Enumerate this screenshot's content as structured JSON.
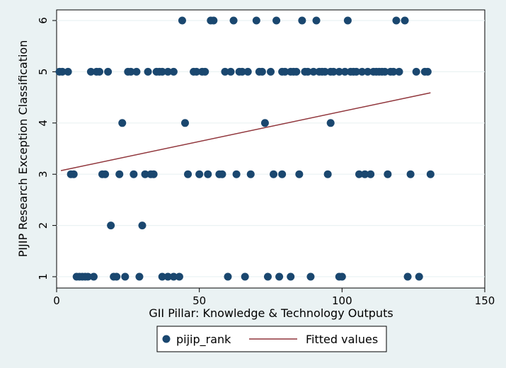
{
  "chart_data": {
    "type": "scatter",
    "xlabel": "GII Pillar: Knowledge & Technology Outputs",
    "ylabel": "PIJIP Research Exception Classification",
    "xlim": [
      0,
      150
    ],
    "ylim": [
      1,
      6
    ],
    "xticks": [
      0,
      50,
      100,
      150
    ],
    "yticks": [
      1,
      2,
      3,
      4,
      5,
      6
    ],
    "grid": "horizontal",
    "legend_position": "bottom",
    "colors": {
      "points": "#1a476f",
      "fit": "#90353b"
    },
    "series": [
      {
        "name": "pijip_rank",
        "kind": "scatter",
        "points": [
          [
            44,
            6
          ],
          [
            54,
            6
          ],
          [
            55,
            6
          ],
          [
            62,
            6
          ],
          [
            70,
            6
          ],
          [
            77,
            6
          ],
          [
            86,
            6
          ],
          [
            91,
            6
          ],
          [
            102,
            6
          ],
          [
            119,
            6
          ],
          [
            122,
            6
          ],
          [
            1,
            5
          ],
          [
            2,
            5
          ],
          [
            4,
            5
          ],
          [
            12,
            5
          ],
          [
            14,
            5
          ],
          [
            15,
            5
          ],
          [
            18,
            5
          ],
          [
            25,
            5
          ],
          [
            26,
            5
          ],
          [
            28,
            5
          ],
          [
            32,
            5
          ],
          [
            35,
            5
          ],
          [
            36,
            5
          ],
          [
            37,
            5
          ],
          [
            39,
            5
          ],
          [
            41,
            5
          ],
          [
            48,
            5
          ],
          [
            49,
            5
          ],
          [
            51,
            5
          ],
          [
            52,
            5
          ],
          [
            59,
            5
          ],
          [
            61,
            5
          ],
          [
            64,
            5
          ],
          [
            65,
            5
          ],
          [
            67,
            5
          ],
          [
            71,
            5
          ],
          [
            72,
            5
          ],
          [
            75,
            5
          ],
          [
            79,
            5
          ],
          [
            80,
            5
          ],
          [
            82,
            5
          ],
          [
            83,
            5
          ],
          [
            84,
            5
          ],
          [
            87,
            5
          ],
          [
            88,
            5
          ],
          [
            90,
            5
          ],
          [
            92,
            5
          ],
          [
            93,
            5
          ],
          [
            94,
            5
          ],
          [
            96,
            5
          ],
          [
            97,
            5
          ],
          [
            99,
            5
          ],
          [
            101,
            5
          ],
          [
            103,
            5
          ],
          [
            104,
            5
          ],
          [
            105,
            5
          ],
          [
            107,
            5
          ],
          [
            109,
            5
          ],
          [
            111,
            5
          ],
          [
            112,
            5
          ],
          [
            113,
            5
          ],
          [
            114,
            5
          ],
          [
            115,
            5
          ],
          [
            117,
            5
          ],
          [
            118,
            5
          ],
          [
            120,
            5
          ],
          [
            126,
            5
          ],
          [
            129,
            5
          ],
          [
            130,
            5
          ],
          [
            23,
            4
          ],
          [
            45,
            4
          ],
          [
            73,
            4
          ],
          [
            96,
            4
          ],
          [
            5,
            3
          ],
          [
            6,
            3
          ],
          [
            16,
            3
          ],
          [
            17,
            3
          ],
          [
            22,
            3
          ],
          [
            27,
            3
          ],
          [
            31,
            3
          ],
          [
            33,
            3
          ],
          [
            34,
            3
          ],
          [
            46,
            3
          ],
          [
            50,
            3
          ],
          [
            53,
            3
          ],
          [
            57,
            3
          ],
          [
            58,
            3
          ],
          [
            63,
            3
          ],
          [
            68,
            3
          ],
          [
            76,
            3
          ],
          [
            79,
            3
          ],
          [
            85,
            3
          ],
          [
            95,
            3
          ],
          [
            106,
            3
          ],
          [
            108,
            3
          ],
          [
            110,
            3
          ],
          [
            116,
            3
          ],
          [
            124,
            3
          ],
          [
            131,
            3
          ],
          [
            19,
            2
          ],
          [
            30,
            2
          ],
          [
            7,
            1
          ],
          [
            8,
            1
          ],
          [
            9,
            1
          ],
          [
            10,
            1
          ],
          [
            11,
            1
          ],
          [
            13,
            1
          ],
          [
            20,
            1
          ],
          [
            21,
            1
          ],
          [
            24,
            1
          ],
          [
            29,
            1
          ],
          [
            37,
            1
          ],
          [
            39,
            1
          ],
          [
            41,
            1
          ],
          [
            43,
            1
          ],
          [
            60,
            1
          ],
          [
            66,
            1
          ],
          [
            74,
            1
          ],
          [
            78,
            1
          ],
          [
            82,
            1
          ],
          [
            89,
            1
          ],
          [
            99,
            1
          ],
          [
            100,
            1
          ],
          [
            123,
            1
          ],
          [
            127,
            1
          ]
        ]
      },
      {
        "name": "Fitted values",
        "kind": "line",
        "points": [
          [
            1.5,
            3.07
          ],
          [
            131,
            4.59
          ]
        ]
      }
    ]
  }
}
